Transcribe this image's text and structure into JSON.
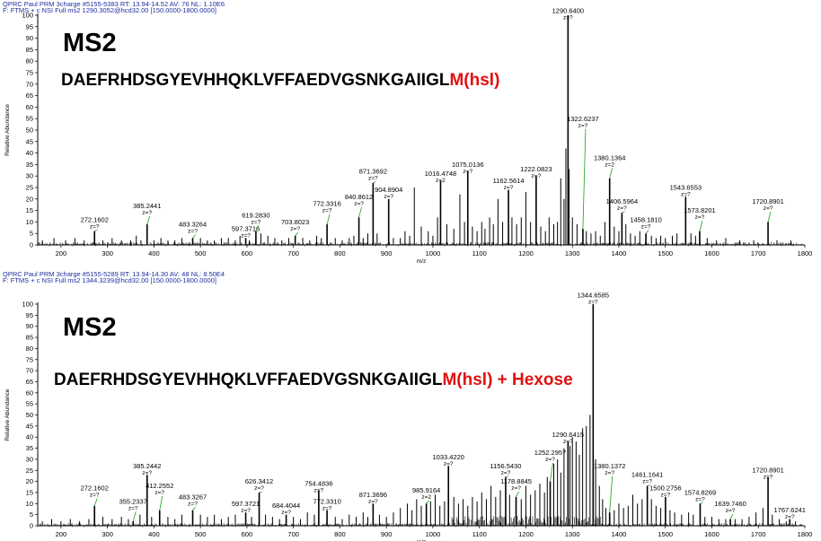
{
  "chart_data": [
    {
      "type": "bar",
      "header_line1": "QPRC  Paul  PRM  3charge #5155-5383  RT: 13.94-14.52  AV: 76  NL: 1.10E6",
      "header_line2": "F: FTMS + c NSI Full ms2 1290.3052@hcd32.00 [150.0000-1800.0000]",
      "title": "MS2",
      "sequence": "DAEFRHDSGYEVHHQKLVFFAEDVGSNKGAIIGL",
      "modification": "M(hsl)",
      "xlabel": "m/z",
      "ylabel": "Relative Abundance",
      "xlim": [
        150,
        1800
      ],
      "ylim": [
        0,
        100
      ],
      "xticks": [
        "200",
        "300",
        "400",
        "500",
        "600",
        "700",
        "800",
        "900",
        "1000",
        "1100",
        "1200",
        "1300",
        "1400",
        "1500",
        "1600",
        "1700",
        "1800"
      ],
      "yticks": [
        "0",
        "5",
        "10",
        "15",
        "20",
        "25",
        "30",
        "35",
        "40",
        "45",
        "50",
        "55",
        "60",
        "65",
        "70",
        "75",
        "80",
        "85",
        "90",
        "95",
        "100"
      ],
      "labeled_peaks": [
        {
          "mz": 272.1602,
          "label": "272.1602",
          "z": "z=?",
          "intensity": 6,
          "label_y": 10
        },
        {
          "mz": 385.2441,
          "label": "385.2441",
          "z": "z=?",
          "intensity": 9,
          "label_y": 16
        },
        {
          "mz": 483.3264,
          "label": "483.3264",
          "z": "z=?",
          "intensity": 3,
          "label_y": 8
        },
        {
          "mz": 597.3716,
          "label": "597.3716",
          "z": "z=?",
          "intensity": 3,
          "label_y": 6
        },
        {
          "mz": 619.283,
          "label": "619.2830",
          "z": "z=?",
          "intensity": 6,
          "label_y": 12
        },
        {
          "mz": 703.8023,
          "label": "703.8023",
          "z": "z=?",
          "intensity": 4,
          "label_y": 9
        },
        {
          "mz": 772.3316,
          "label": "772.3316",
          "z": "z=?",
          "intensity": 9,
          "label_y": 17
        },
        {
          "mz": 840.8612,
          "label": "840.8612",
          "z": "z=?",
          "intensity": 12,
          "label_y": 20
        },
        {
          "mz": 871.3692,
          "label": "871.3692",
          "z": "z=?",
          "intensity": 27,
          "label_y": 31
        },
        {
          "mz": 904.8904,
          "label": "904.8904",
          "z": "z=?",
          "intensity": 20,
          "label_y": 23
        },
        {
          "mz": 1016.4748,
          "label": "1016.4748",
          "z": "z=2",
          "intensity": 28,
          "label_y": 30
        },
        {
          "mz": 1075.0136,
          "label": "1075.0136",
          "z": "z=?",
          "intensity": 32,
          "label_y": 34
        },
        {
          "mz": 1162.5614,
          "label": "1162.5614",
          "z": "z=?",
          "intensity": 24,
          "label_y": 27
        },
        {
          "mz": 1222.0823,
          "label": "1222.0823",
          "z": "z=?",
          "intensity": 30,
          "label_y": 32
        },
        {
          "mz": 1290.64,
          "label": "1290.6400",
          "z": "z=?",
          "intensity": 100,
          "label_y": 101
        },
        {
          "mz": 1322.6237,
          "label": "1322.6237",
          "z": "z=?",
          "intensity": 7,
          "label_y": 54
        },
        {
          "mz": 1380.1364,
          "label": "1380.1364",
          "z": "z=2",
          "intensity": 29,
          "label_y": 37
        },
        {
          "mz": 1406.5964,
          "label": "1406.5964",
          "z": "z=?",
          "intensity": 14,
          "label_y": 18
        },
        {
          "mz": 1458.181,
          "label": "1458.1810",
          "z": "z=?",
          "intensity": 5,
          "label_y": 10
        },
        {
          "mz": 1543.6553,
          "label": "1543.6553",
          "z": "z=?",
          "intensity": 21,
          "label_y": 24
        },
        {
          "mz": 1573.8201,
          "label": "1573.8201",
          "z": "z=?",
          "intensity": 6,
          "label_y": 14
        },
        {
          "mz": 1720.8901,
          "label": "1720.8901",
          "z": "z=?",
          "intensity": 10,
          "label_y": 18
        }
      ],
      "other_peaks": [
        [
          160,
          2
        ],
        [
          185,
          3
        ],
        [
          210,
          2
        ],
        [
          230,
          3
        ],
        [
          250,
          2
        ],
        [
          290,
          2
        ],
        [
          310,
          3
        ],
        [
          330,
          2
        ],
        [
          350,
          2
        ],
        [
          362,
          4
        ],
        [
          372,
          2
        ],
        [
          400,
          2
        ],
        [
          415,
          3
        ],
        [
          430,
          2
        ],
        [
          445,
          2
        ],
        [
          460,
          3
        ],
        [
          500,
          3
        ],
        [
          515,
          2
        ],
        [
          530,
          2
        ],
        [
          545,
          3
        ],
        [
          560,
          3
        ],
        [
          575,
          2
        ],
        [
          585,
          4
        ],
        [
          605,
          2
        ],
        [
          630,
          5
        ],
        [
          645,
          4
        ],
        [
          660,
          3
        ],
        [
          675,
          2
        ],
        [
          690,
          3
        ],
        [
          720,
          3
        ],
        [
          735,
          2
        ],
        [
          750,
          4
        ],
        [
          760,
          3
        ],
        [
          790,
          3
        ],
        [
          805,
          2
        ],
        [
          820,
          3
        ],
        [
          830,
          4
        ],
        [
          850,
          3
        ],
        [
          860,
          5
        ],
        [
          880,
          5
        ],
        [
          915,
          3
        ],
        [
          930,
          3
        ],
        [
          940,
          6
        ],
        [
          950,
          4
        ],
        [
          960,
          25
        ],
        [
          975,
          8
        ],
        [
          990,
          6
        ],
        [
          1000,
          4
        ],
        [
          1010,
          12
        ],
        [
          1030,
          9
        ],
        [
          1045,
          7
        ],
        [
          1058,
          22
        ],
        [
          1068,
          10
        ],
        [
          1085,
          8
        ],
        [
          1095,
          6
        ],
        [
          1105,
          10
        ],
        [
          1112,
          7
        ],
        [
          1122,
          12
        ],
        [
          1130,
          9
        ],
        [
          1140,
          20
        ],
        [
          1150,
          10
        ],
        [
          1170,
          12
        ],
        [
          1180,
          9
        ],
        [
          1190,
          12
        ],
        [
          1200,
          23
        ],
        [
          1210,
          10
        ],
        [
          1232,
          8
        ],
        [
          1242,
          6
        ],
        [
          1250,
          12
        ],
        [
          1260,
          9
        ],
        [
          1268,
          10
        ],
        [
          1275,
          29
        ],
        [
          1282,
          20
        ],
        [
          1286,
          42
        ],
        [
          1293,
          33
        ],
        [
          1300,
          12
        ],
        [
          1310,
          9
        ],
        [
          1330,
          6
        ],
        [
          1340,
          5
        ],
        [
          1350,
          6
        ],
        [
          1360,
          4
        ],
        [
          1370,
          10
        ],
        [
          1390,
          8
        ],
        [
          1400,
          6
        ],
        [
          1415,
          9
        ],
        [
          1425,
          5
        ],
        [
          1435,
          4
        ],
        [
          1445,
          6
        ],
        [
          1470,
          4
        ],
        [
          1480,
          3
        ],
        [
          1490,
          4
        ],
        [
          1500,
          3
        ],
        [
          1515,
          4
        ],
        [
          1525,
          5
        ],
        [
          1555,
          5
        ],
        [
          1565,
          4
        ],
        [
          1590,
          3
        ],
        [
          1610,
          2
        ],
        [
          1630,
          3
        ],
        [
          1660,
          2
        ],
        [
          1690,
          2
        ],
        [
          1740,
          2
        ],
        [
          1770,
          2
        ]
      ]
    },
    {
      "type": "bar",
      "header_line1": "QPRC  Paul  PRM  3charge #5155-5289  RT: 13.94-14.30  AV: 48  NL: 8.50E4",
      "header_line2": "F: FTMS + c NSI Full ms2 1344.3239@hcd32.00 [150.0000-1800.0000]",
      "title": "MS2",
      "sequence": "DAEFRHDSGYEVHHQKLVFFAEDVGSNKGAIIGL",
      "modification": "M(hsl) + Hexose",
      "xlabel": "m/z",
      "ylabel": "Relative Abundance",
      "xlim": [
        150,
        1800
      ],
      "ylim": [
        0,
        100
      ],
      "xticks": [
        "200",
        "300",
        "400",
        "500",
        "600",
        "700",
        "800",
        "900",
        "1000",
        "1100",
        "1200",
        "1300",
        "1400",
        "1500",
        "1600",
        "1700",
        "1800"
      ],
      "yticks": [
        "0",
        "5",
        "10",
        "15",
        "20",
        "25",
        "30",
        "35",
        "40",
        "45",
        "50",
        "55",
        "60",
        "65",
        "70",
        "75",
        "80",
        "85",
        "90",
        "95",
        "100"
      ],
      "labeled_peaks": [
        {
          "mz": 272.1602,
          "label": "272.1602",
          "z": "z=?",
          "intensity": 9,
          "label_y": 16
        },
        {
          "mz": 355.2337,
          "label": "355.2337",
          "z": "z=?",
          "intensity": 2,
          "label_y": 10
        },
        {
          "mz": 385.2442,
          "label": "385.2442",
          "z": "z=?",
          "intensity": 23,
          "label_y": 26
        },
        {
          "mz": 412.2552,
          "label": "412.2552",
          "z": "z=?",
          "intensity": 7,
          "label_y": 17
        },
        {
          "mz": 483.3267,
          "label": "483.3267",
          "z": "z=?",
          "intensity": 7,
          "label_y": 12
        },
        {
          "mz": 597.3721,
          "label": "597.3721",
          "z": "z=?",
          "intensity": 6,
          "label_y": 9
        },
        {
          "mz": 626.3412,
          "label": "626.3412",
          "z": "z=?",
          "intensity": 15,
          "label_y": 19
        },
        {
          "mz": 684.4044,
          "label": "684.4044",
          "z": "z=?",
          "intensity": 5,
          "label_y": 8
        },
        {
          "mz": 754.4836,
          "label": "754.4836",
          "z": "z=?",
          "intensity": 16,
          "label_y": 18
        },
        {
          "mz": 772.331,
          "label": "772.3310",
          "z": "z=?",
          "intensity": 7,
          "label_y": 10
        },
        {
          "mz": 871.3696,
          "label": "871.3696",
          "z": "z=?",
          "intensity": 10,
          "label_y": 13
        },
        {
          "mz": 985.9164,
          "label": "985.9164",
          "z": "z=2",
          "intensity": 10,
          "label_y": 15
        },
        {
          "mz": 1033.422,
          "label": "1033.4220",
          "z": "z=?",
          "intensity": 27,
          "label_y": 30
        },
        {
          "mz": 1156.543,
          "label": "1156.5430",
          "z": "z=?",
          "intensity": 22,
          "label_y": 26
        },
        {
          "mz": 1178.8845,
          "label": "1178.8845",
          "z": "z=?",
          "intensity": 13,
          "label_y": 19
        },
        {
          "mz": 1252.2957,
          "label": "1252.2957",
          "z": "z=?",
          "intensity": 20,
          "label_y": 32
        },
        {
          "mz": 1290.6415,
          "label": "1290.6415",
          "z": "z=?",
          "intensity": 38,
          "label_y": 40
        },
        {
          "mz": 1344.6585,
          "label": "1344.6585",
          "z": "z=?",
          "intensity": 100,
          "label_y": 103
        },
        {
          "mz": 1380.1372,
          "label": "1380.1372",
          "z": "z=?",
          "intensity": 6,
          "label_y": 26
        },
        {
          "mz": 1461.1641,
          "label": "1461.1641",
          "z": "z=?",
          "intensity": 18,
          "label_y": 22
        },
        {
          "mz": 1500.2756,
          "label": "1500.2756",
          "z": "z=?",
          "intensity": 13,
          "label_y": 16
        },
        {
          "mz": 1574.8269,
          "label": "1574.8269",
          "z": "z=?",
          "intensity": 10,
          "label_y": 14
        },
        {
          "mz": 1639.746,
          "label": "1639.7460",
          "z": "z=?",
          "intensity": 3,
          "label_y": 9
        },
        {
          "mz": 1720.8901,
          "label": "1720.8901",
          "z": "z=?",
          "intensity": 22,
          "label_y": 24
        },
        {
          "mz": 1767.6241,
          "label": "1767.6241",
          "z": "z=?",
          "intensity": 3,
          "label_y": 6
        }
      ],
      "other_peaks": [
        [
          160,
          2
        ],
        [
          180,
          3
        ],
        [
          200,
          2
        ],
        [
          220,
          3
        ],
        [
          240,
          2
        ],
        [
          260,
          3
        ],
        [
          290,
          4
        ],
        [
          310,
          3
        ],
        [
          330,
          4
        ],
        [
          345,
          3
        ],
        [
          370,
          5
        ],
        [
          395,
          4
        ],
        [
          430,
          4
        ],
        [
          445,
          3
        ],
        [
          460,
          5
        ],
        [
          500,
          5
        ],
        [
          515,
          4
        ],
        [
          530,
          5
        ],
        [
          545,
          3
        ],
        [
          560,
          4
        ],
        [
          575,
          5
        ],
        [
          610,
          4
        ],
        [
          640,
          5
        ],
        [
          655,
          4
        ],
        [
          670,
          3
        ],
        [
          700,
          4
        ],
        [
          715,
          3
        ],
        [
          730,
          6
        ],
        [
          745,
          5
        ],
        [
          790,
          4
        ],
        [
          805,
          3
        ],
        [
          820,
          5
        ],
        [
          835,
          4
        ],
        [
          850,
          6
        ],
        [
          860,
          4
        ],
        [
          885,
          5
        ],
        [
          900,
          4
        ],
        [
          915,
          6
        ],
        [
          930,
          8
        ],
        [
          945,
          10
        ],
        [
          955,
          7
        ],
        [
          965,
          12
        ],
        [
          975,
          9
        ],
        [
          995,
          11
        ],
        [
          1005,
          14
        ],
        [
          1015,
          9
        ],
        [
          1025,
          11
        ],
        [
          1045,
          13
        ],
        [
          1055,
          10
        ],
        [
          1065,
          12
        ],
        [
          1075,
          9
        ],
        [
          1085,
          13
        ],
        [
          1095,
          11
        ],
        [
          1105,
          15
        ],
        [
          1115,
          12
        ],
        [
          1125,
          18
        ],
        [
          1135,
          13
        ],
        [
          1145,
          16
        ],
        [
          1165,
          14
        ],
        [
          1190,
          12
        ],
        [
          1200,
          18
        ],
        [
          1210,
          14
        ],
        [
          1220,
          16
        ],
        [
          1230,
          19
        ],
        [
          1240,
          15
        ],
        [
          1246,
          22
        ],
        [
          1260,
          28
        ],
        [
          1268,
          30
        ],
        [
          1275,
          24
        ],
        [
          1282,
          35
        ],
        [
          1295,
          36
        ],
        [
          1300,
          40
        ],
        [
          1308,
          38
        ],
        [
          1315,
          32
        ],
        [
          1322,
          44
        ],
        [
          1330,
          45
        ],
        [
          1338,
          50
        ],
        [
          1350,
          30
        ],
        [
          1358,
          18
        ],
        [
          1365,
          12
        ],
        [
          1372,
          8
        ],
        [
          1390,
          7
        ],
        [
          1400,
          10
        ],
        [
          1410,
          8
        ],
        [
          1420,
          9
        ],
        [
          1430,
          14
        ],
        [
          1440,
          10
        ],
        [
          1450,
          12
        ],
        [
          1470,
          12
        ],
        [
          1480,
          9
        ],
        [
          1490,
          8
        ],
        [
          1510,
          7
        ],
        [
          1520,
          6
        ],
        [
          1535,
          5
        ],
        [
          1550,
          6
        ],
        [
          1560,
          5
        ],
        [
          1585,
          4
        ],
        [
          1600,
          4
        ],
        [
          1615,
          3
        ],
        [
          1630,
          3
        ],
        [
          1650,
          3
        ],
        [
          1665,
          3
        ],
        [
          1680,
          4
        ],
        [
          1695,
          6
        ],
        [
          1710,
          8
        ],
        [
          1730,
          5
        ],
        [
          1745,
          3
        ],
        [
          1760,
          2
        ],
        [
          1780,
          2
        ]
      ]
    }
  ]
}
